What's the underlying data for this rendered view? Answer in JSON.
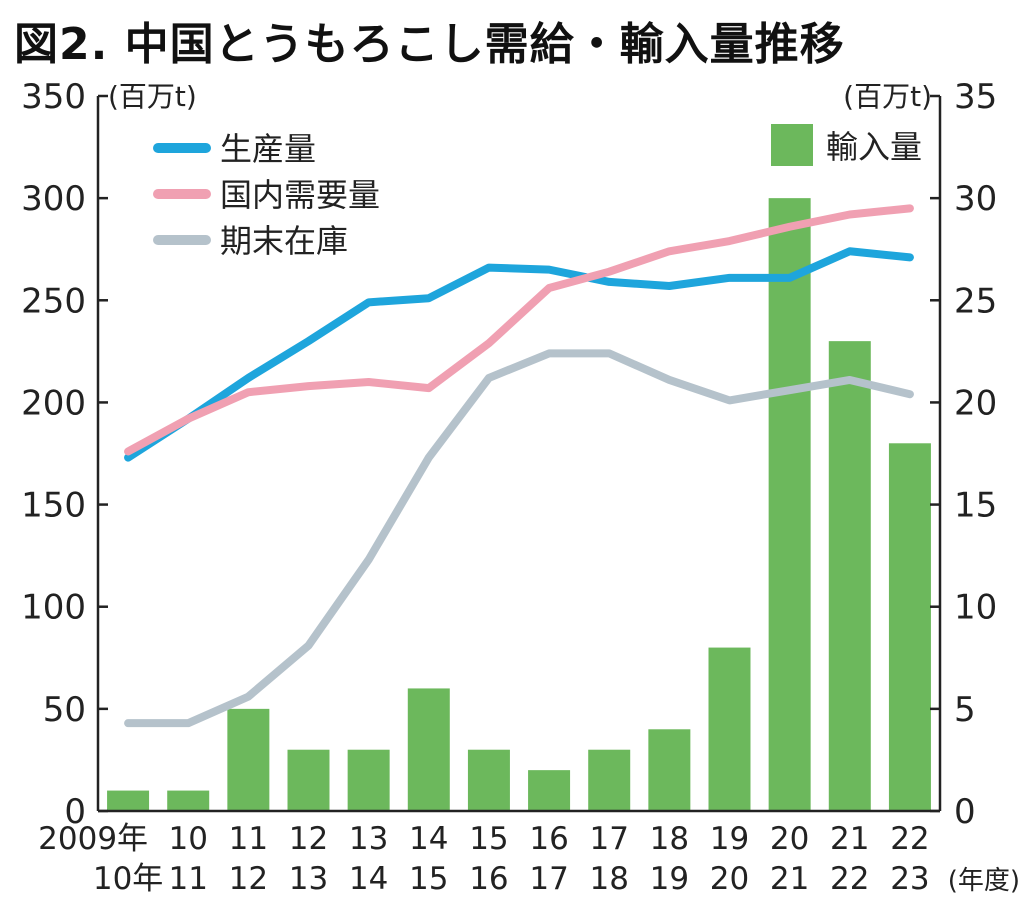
{
  "chart_data": {
    "type": "bar+line",
    "title": "図2. 中国とうもろこし需給・輸入量推移",
    "categories_line1": [
      "2009年",
      "10",
      "11",
      "12",
      "13",
      "14",
      "15",
      "16",
      "17",
      "18",
      "19",
      "20",
      "21",
      "22"
    ],
    "categories_line2": [
      "10年",
      "11",
      "12",
      "13",
      "14",
      "15",
      "16",
      "17",
      "18",
      "19",
      "20",
      "21",
      "22",
      "23"
    ],
    "xlabel": "(年度)",
    "ylabel_left": "(百万t)",
    "ylim_left": [
      0,
      350
    ],
    "yticks_left": [
      0,
      50,
      100,
      150,
      200,
      250,
      300,
      350
    ],
    "ylabel_right": "(百万t)",
    "ylim_right": [
      0,
      35
    ],
    "yticks_right": [
      0,
      5,
      10,
      15,
      20,
      25,
      30,
      35
    ],
    "grid": false,
    "legend_placement": "top",
    "bars": {
      "name": "輸入量",
      "axis": "right",
      "color": "#6cb85c",
      "values": [
        1,
        1,
        5,
        3,
        3,
        6,
        3,
        2,
        3,
        4,
        8,
        30,
        23,
        18
      ]
    },
    "series": [
      {
        "name": "生産量",
        "axis": "left",
        "color": "#1ea5dc",
        "values": [
          173,
          192,
          212,
          230,
          249,
          251,
          266,
          265,
          259,
          257,
          261,
          261,
          274,
          271
        ]
      },
      {
        "name": "国内需要量",
        "axis": "left",
        "color": "#f0a0b2",
        "values": [
          176,
          192,
          205,
          208,
          210,
          207,
          229,
          256,
          264,
          274,
          279,
          286,
          292,
          295
        ]
      },
      {
        "name": "期末在庫",
        "axis": "left",
        "color": "#b5c2cb",
        "values": [
          43,
          43,
          56,
          81,
          123,
          173,
          212,
          224,
          224,
          211,
          201,
          206,
          211,
          204
        ]
      }
    ]
  }
}
